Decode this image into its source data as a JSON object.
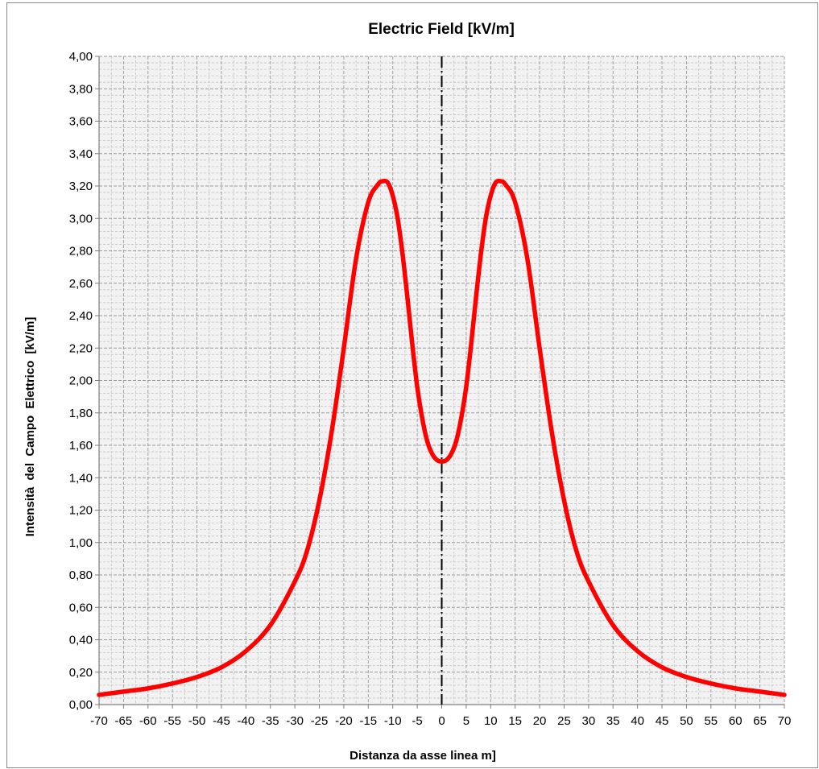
{
  "chart_data": {
    "type": "line",
    "title": "Electric Field [kV/m]",
    "xlabel": "Distanza da asse linea m]",
    "ylabel": "Intensità del Campo Elettrico [kV/m]",
    "xlim": [
      -70,
      70
    ],
    "ylim": [
      0,
      4
    ],
    "grid": true,
    "x_ticks": [
      "-70",
      "-65",
      "-60",
      "-55",
      "-50",
      "-45",
      "-40",
      "-35",
      "-30",
      "-25",
      "-20",
      "-15",
      "-10",
      "-5",
      "0",
      "5",
      "10",
      "15",
      "20",
      "25",
      "30",
      "35",
      "40",
      "45",
      "50",
      "55",
      "60",
      "65",
      "70"
    ],
    "y_ticks": [
      "0,00",
      "0,20",
      "0,40",
      "0,60",
      "0,80",
      "1,00",
      "1,20",
      "1,40",
      "1,60",
      "1,80",
      "2,00",
      "2,20",
      "2,40",
      "2,60",
      "2,80",
      "3,00",
      "3,20",
      "3,40",
      "3,60",
      "3,80",
      "4,00"
    ],
    "centerline_x": 0,
    "series": [
      {
        "color": "#ff0000",
        "x": [
          -70,
          -65,
          -60,
          -55,
          -50,
          -45,
          -40,
          -35,
          -30,
          -27.5,
          -25,
          -22.5,
          -20,
          -17.5,
          -15,
          -13,
          -12,
          -11,
          -10,
          -9,
          -8,
          -7,
          -6,
          -5,
          -4,
          -3,
          -2,
          -1,
          0,
          1,
          2,
          3,
          4,
          5,
          6,
          7,
          8,
          9,
          10,
          11,
          12,
          13,
          15,
          17.5,
          20,
          22.5,
          25,
          27.5,
          30,
          35,
          40,
          45,
          50,
          55,
          60,
          65,
          70
        ],
        "y": [
          0.06,
          0.08,
          0.1,
          0.13,
          0.17,
          0.23,
          0.33,
          0.49,
          0.76,
          0.95,
          1.26,
          1.68,
          2.2,
          2.75,
          3.1,
          3.21,
          3.23,
          3.22,
          3.14,
          3.0,
          2.78,
          2.51,
          2.22,
          1.96,
          1.77,
          1.63,
          1.55,
          1.51,
          1.5,
          1.51,
          1.55,
          1.63,
          1.77,
          1.96,
          2.22,
          2.51,
          2.78,
          3.0,
          3.14,
          3.22,
          3.23,
          3.21,
          3.1,
          2.75,
          2.2,
          1.68,
          1.26,
          0.95,
          0.76,
          0.49,
          0.33,
          0.23,
          0.17,
          0.13,
          0.1,
          0.08,
          0.06
        ]
      }
    ]
  }
}
